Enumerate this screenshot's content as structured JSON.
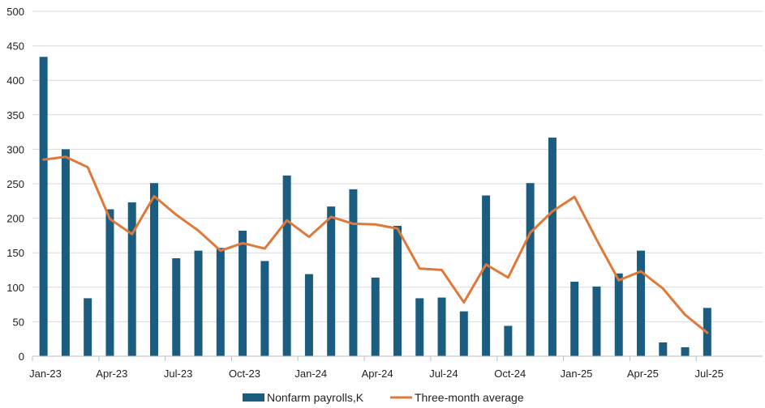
{
  "chart_data": {
    "type": "bar",
    "title": "",
    "xlabel": "",
    "ylabel": "",
    "ylim": [
      0,
      500
    ],
    "yticks": [
      0,
      50,
      100,
      150,
      200,
      250,
      300,
      350,
      400,
      450,
      500
    ],
    "grid": true,
    "legend_position": "bottom",
    "categories": [
      "Jan-23",
      "Feb-23",
      "Mar-23",
      "Apr-23",
      "May-23",
      "Jun-23",
      "Jul-23",
      "Aug-23",
      "Sep-23",
      "Oct-23",
      "Nov-23",
      "Dec-23",
      "Jan-24",
      "Feb-24",
      "Mar-24",
      "Apr-24",
      "May-24",
      "Jun-24",
      "Jul-24",
      "Aug-24",
      "Sep-24",
      "Oct-24",
      "Nov-24",
      "Dec-24",
      "Jan-25",
      "Feb-25",
      "Mar-25",
      "Apr-25",
      "May-25",
      "Jun-25",
      "Jul-25",
      "Aug-25",
      "Sep-25"
    ],
    "xtick_labels": [
      "Jan-23",
      "Apr-23",
      "Jul-23",
      "Oct-23",
      "Jan-24",
      "Apr-24",
      "Jul-24",
      "Oct-24",
      "Jan-25",
      "Apr-25",
      "Jul-25"
    ],
    "series": [
      {
        "name": "Nonfarm payrolls,K",
        "type": "bar",
        "color": "#1a5d80",
        "values": [
          434,
          300,
          84,
          213,
          223,
          251,
          142,
          153,
          157,
          182,
          138,
          262,
          119,
          217,
          242,
          114,
          189,
          84,
          85,
          65,
          233,
          44,
          251,
          317,
          108,
          101,
          120,
          153,
          20,
          13,
          70,
          null,
          null
        ]
      },
      {
        "name": "Three-month average",
        "type": "line",
        "color": "#e0783a",
        "values": [
          285,
          289,
          274,
          199,
          177,
          232,
          205,
          182,
          153,
          164,
          156,
          197,
          173,
          202,
          192,
          191,
          185,
          127,
          125,
          78,
          133,
          114,
          179,
          210,
          231,
          169,
          110,
          123,
          98,
          60,
          34,
          null,
          null
        ]
      }
    ]
  }
}
